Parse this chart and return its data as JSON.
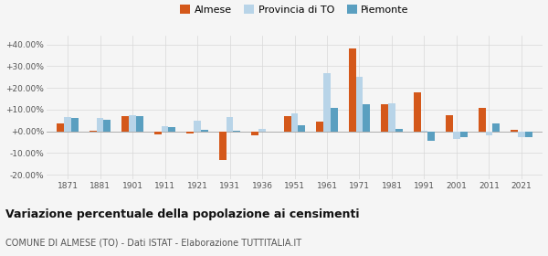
{
  "years": [
    1871,
    1881,
    1901,
    1911,
    1921,
    1931,
    1936,
    1951,
    1961,
    1971,
    1981,
    1991,
    2001,
    2011,
    2021
  ],
  "almese": [
    3.5,
    0.2,
    7.0,
    -1.5,
    -0.8,
    -13.0,
    -2.0,
    7.0,
    4.5,
    38.0,
    12.5,
    18.0,
    7.5,
    11.0,
    0.8
  ],
  "provincia_to": [
    6.5,
    6.0,
    7.5,
    2.5,
    5.0,
    6.5,
    1.0,
    8.5,
    27.0,
    25.0,
    13.0,
    0.5,
    -3.5,
    -2.0,
    -2.5
  ],
  "piemonte": [
    6.0,
    5.5,
    7.0,
    2.0,
    0.8,
    0.5,
    0.0,
    3.0,
    11.0,
    12.5,
    1.0,
    -4.5,
    -2.5,
    3.5,
    -2.5
  ],
  "almese_color": "#d4581a",
  "prov_color": "#b8d4e8",
  "piem_color": "#5a9fc0",
  "title": "Variazione percentuale della popolazione ai censimenti",
  "subtitle": "COMUNE DI ALMESE (TO) - Dati ISTAT - Elaborazione TUTTITALIA.IT",
  "ylim": [
    -22,
    44
  ],
  "yticks": [
    -20,
    -10,
    0,
    10,
    20,
    30,
    40
  ],
  "background_color": "#f5f5f5",
  "bar_width": 0.22
}
